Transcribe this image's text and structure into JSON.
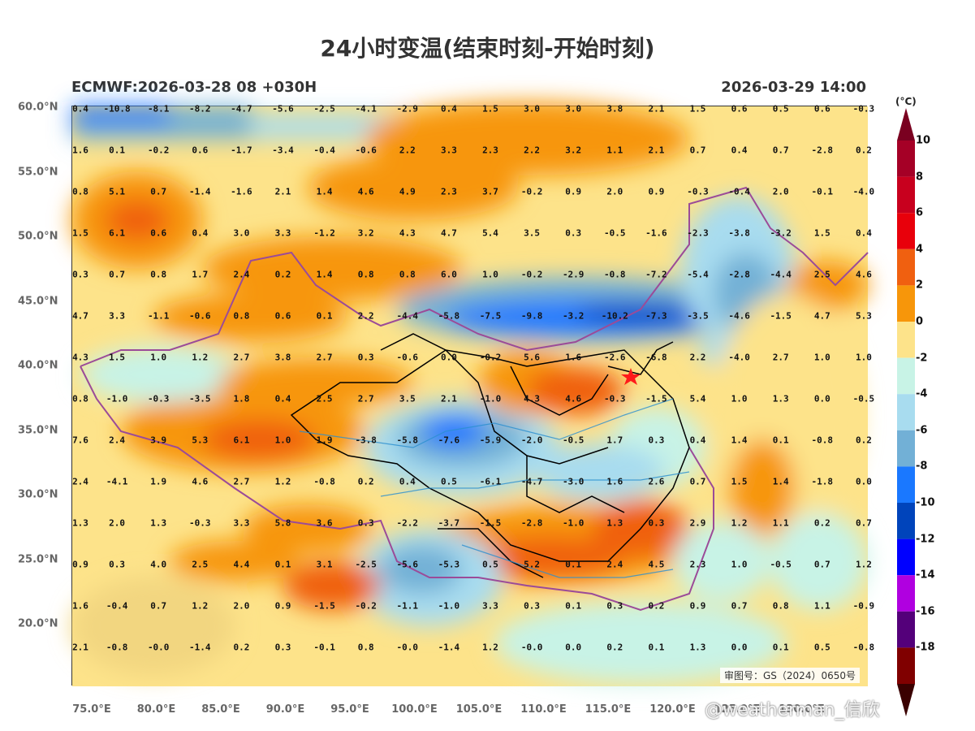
{
  "title": "24小时变温(结束时刻-开始时刻)",
  "subtitle_left": "ECMWF:2026-03-28 08 +030H",
  "subtitle_right": "2026-03-29 14:00",
  "lat_labels": [
    "60.0°N",
    "55.0°N",
    "50.0°N",
    "45.0°N",
    "40.0°N",
    "35.0°N",
    "30.0°N",
    "25.0°N",
    "20.0°N"
  ],
  "lon_labels": [
    "75.0°E",
    "80.0°E",
    "85.0°E",
    "90.0°E",
    "95.0°E",
    "100.0°E",
    "105.0°E",
    "110.0°E",
    "115.0°E",
    "120.0°E",
    "125.0°E",
    "130.0°E"
  ],
  "colorbar": {
    "unit": "(°C)",
    "ticks": [
      "10",
      "8",
      "6",
      "4",
      "2",
      "0",
      "-2",
      "-4",
      "-6",
      "-8",
      "-10",
      "-12",
      "-14",
      "-16",
      "-18"
    ],
    "colors": [
      "#a50026",
      "#c8001e",
      "#e8000b",
      "#f06010",
      "#f7960a",
      "#fde38a",
      "#c8f3e6",
      "#a8dcef",
      "#72b0d6",
      "#1a78ff",
      "#0044bb",
      "#0000ff",
      "#b000e0",
      "#54007a",
      "#800000"
    ]
  },
  "grid_values": [
    [
      "0.4",
      "-10.8",
      "-8.1",
      "-8.2",
      "-4.7",
      "-5.6",
      "-2.5",
      "-4.1",
      "-2.9",
      "0.4",
      "1.5",
      "3.0",
      "3.0",
      "3.8",
      "2.1",
      "1.5",
      "0.6",
      "0.5",
      "0.6",
      "-0.3"
    ],
    [
      "1.6",
      "0.1",
      "-0.2",
      "0.6",
      "-1.7",
      "-3.4",
      "-0.4",
      "-0.6",
      "2.2",
      "3.3",
      "2.3",
      "2.2",
      "3.2",
      "1.1",
      "2.1",
      "0.7",
      "0.4",
      "0.7",
      "-2.8",
      "0.2"
    ],
    [
      "0.8",
      "5.1",
      "0.7",
      "-1.4",
      "-1.6",
      "2.1",
      "1.4",
      "4.6",
      "4.9",
      "2.3",
      "3.7",
      "-0.2",
      "0.9",
      "2.0",
      "0.9",
      "-0.3",
      "-0.4",
      "2.0",
      "-0.1",
      "-4.0"
    ],
    [
      "1.5",
      "6.1",
      "0.6",
      "0.4",
      "3.0",
      "3.3",
      "-1.2",
      "3.2",
      "4.3",
      "4.7",
      "5.4",
      "3.5",
      "0.3",
      "-0.5",
      "-1.6",
      "-2.3",
      "-3.8",
      "-3.2",
      "1.5",
      "0.4"
    ],
    [
      "0.3",
      "0.7",
      "0.8",
      "1.7",
      "2.4",
      "0.2",
      "1.4",
      "0.8",
      "0.8",
      "6.0",
      "1.0",
      "-0.2",
      "-2.9",
      "-0.8",
      "-7.2",
      "-5.4",
      "-2.8",
      "-4.4",
      "2.5",
      "4.6"
    ],
    [
      "4.7",
      "3.3",
      "-1.1",
      "-0.6",
      "0.8",
      "0.6",
      "0.1",
      "2.2",
      "-4.4",
      "-5.8",
      "-7.5",
      "-9.8",
      "-3.2",
      "-10.2",
      "-7.3",
      "-3.5",
      "-4.6",
      "-1.5",
      "4.7",
      "5.3"
    ],
    [
      "4.3",
      "1.5",
      "1.0",
      "1.2",
      "2.7",
      "3.8",
      "2.7",
      "0.3",
      "-0.6",
      "0.0",
      "-0.2",
      "5.6",
      "1.6",
      "-2.6",
      "-6.8",
      "2.2",
      "-4.0",
      "2.7",
      "1.0",
      "1.0"
    ],
    [
      "0.8",
      "-1.0",
      "-0.3",
      "-3.5",
      "1.8",
      "0.4",
      "2.5",
      "2.7",
      "3.5",
      "2.1",
      "-1.0",
      "4.3",
      "4.6",
      "-0.3",
      "-1.5",
      "5.4",
      "1.0",
      "1.3",
      "0.0",
      "-0.5"
    ],
    [
      "7.6",
      "2.4",
      "3.9",
      "5.3",
      "6.1",
      "1.0",
      "1.9",
      "-3.8",
      "-5.8",
      "-7.6",
      "-5.9",
      "-2.0",
      "-0.5",
      "1.7",
      "0.3",
      "0.4",
      "1.4",
      "0.1",
      "-0.8",
      "0.2"
    ],
    [
      "2.4",
      "-4.1",
      "1.9",
      "4.6",
      "2.7",
      "1.2",
      "-0.8",
      "0.2",
      "0.4",
      "0.5",
      "-6.1",
      "-4.7",
      "-3.0",
      "1.6",
      "2.6",
      "0.7",
      "1.5",
      "1.4",
      "-1.8",
      "0.0"
    ],
    [
      "1.3",
      "2.0",
      "1.3",
      "-0.3",
      "3.3",
      "5.8",
      "3.6",
      "0.3",
      "-2.2",
      "-3.7",
      "-1.5",
      "-2.8",
      "-1.0",
      "1.3",
      "0.3",
      "2.9",
      "1.2",
      "1.1",
      "0.2",
      "0.7"
    ],
    [
      "0.9",
      "0.3",
      "4.0",
      "2.5",
      "4.4",
      "0.1",
      "3.1",
      "-2.5",
      "-5.6",
      "-5.3",
      "0.5",
      "5.2",
      "0.1",
      "2.4",
      "4.5",
      "2.3",
      "1.0",
      "-0.5",
      "0.7",
      "1.2"
    ],
    [
      "1.6",
      "-0.4",
      "0.7",
      "1.2",
      "2.0",
      "0.9",
      "-1.5",
      "-0.2",
      "-1.1",
      "-1.0",
      "3.3",
      "0.3",
      "0.1",
      "0.3",
      "0.2",
      "0.9",
      "0.7",
      "0.8",
      "1.1",
      "-0.9"
    ],
    [
      "2.1",
      "-0.8",
      "-0.0",
      "-1.4",
      "0.2",
      "0.3",
      "-0.1",
      "0.8",
      "-0.0",
      "-1.4",
      "1.2",
      "-0.0",
      "0.0",
      "0.2",
      "0.1",
      "1.3",
      "0.0",
      "0.1",
      "0.5",
      "-0.8"
    ]
  ],
  "review_number": "审图号：GS（2024）0650号",
  "watermark": "@weatherman_信欣"
}
